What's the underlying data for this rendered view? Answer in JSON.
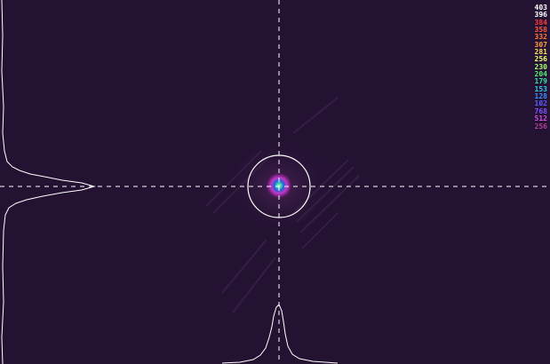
{
  "viewer": {
    "background_color": "#241233",
    "crosshair_color": "#ffffff",
    "profile_color": "#ffffff"
  },
  "legend": {
    "items": [
      {
        "label": "403",
        "color": "#ffffff"
      },
      {
        "label": "396",
        "color": "#ffffff"
      },
      {
        "label": "384",
        "color": "#ff3a3a"
      },
      {
        "label": "358",
        "color": "#ff5a3a"
      },
      {
        "label": "332",
        "color": "#ff7a3a"
      },
      {
        "label": "307",
        "color": "#ffa040"
      },
      {
        "label": "281",
        "color": "#ffe060"
      },
      {
        "label": "256",
        "color": "#f0ff70"
      },
      {
        "label": "230",
        "color": "#a8ff70"
      },
      {
        "label": "204",
        "color": "#50f070"
      },
      {
        "label": "179",
        "color": "#30e0a0"
      },
      {
        "label": "153",
        "color": "#30c8e8"
      },
      {
        "label": "128",
        "color": "#3a90ff"
      },
      {
        "label": "102",
        "color": "#5a60ff"
      },
      {
        "label": "768",
        "color": "#8050ff"
      },
      {
        "label": "512",
        "color": "#d050e0"
      },
      {
        "label": "256",
        "color": "#b040a0"
      }
    ]
  }
}
